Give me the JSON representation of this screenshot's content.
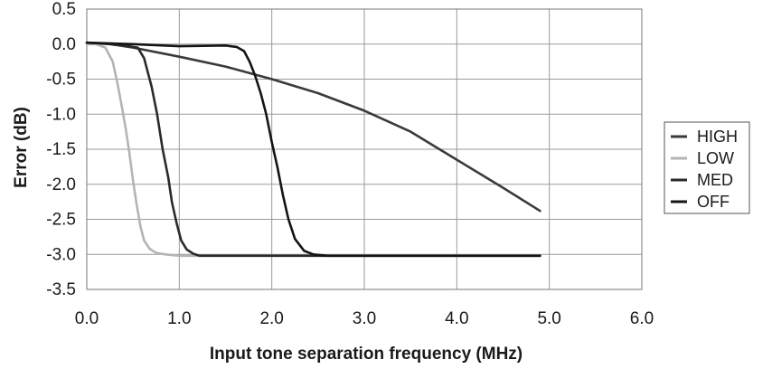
{
  "chart_data": {
    "type": "line",
    "title": "",
    "xlabel": "Input tone separation frequency (MHz)",
    "ylabel": "Error (dB)",
    "xlim": [
      0,
      6
    ],
    "ylim": [
      -3.5,
      0.5
    ],
    "xticks": [
      0,
      1,
      2,
      3,
      4,
      5,
      6
    ],
    "xtick_labels": [
      "0.0",
      "1.0",
      "2.0",
      "3.0",
      "4.0",
      "5.0",
      "6.0"
    ],
    "yticks": [
      0.5,
      0,
      -0.5,
      -1,
      -1.5,
      -2,
      -2.5,
      -3,
      -3.5
    ],
    "ytick_labels": [
      "0.5",
      "0.0",
      "-0.5",
      "-1.0",
      "-1.5",
      "-2.0",
      "-2.5",
      "-3.0",
      "-3.5"
    ],
    "grid": true,
    "legend_position": "right",
    "series": [
      {
        "name": "HIGH",
        "color": "#3a3a3a",
        "x": [
          0.0,
          0.25,
          0.5,
          1.0,
          1.5,
          2.0,
          2.5,
          3.0,
          3.5,
          4.0,
          4.5,
          4.9
        ],
        "y": [
          0.02,
          0.0,
          -0.05,
          -0.18,
          -0.32,
          -0.5,
          -0.7,
          -0.95,
          -1.25,
          -1.65,
          -2.05,
          -2.38
        ]
      },
      {
        "name": "LOW",
        "color": "#b4b4b4",
        "x": [
          0.0,
          0.1,
          0.2,
          0.28,
          0.33,
          0.38,
          0.42,
          0.46,
          0.5,
          0.54,
          0.58,
          0.62,
          0.68,
          0.75,
          0.85,
          1.0,
          1.2
        ],
        "y": [
          0.0,
          0.0,
          -0.05,
          -0.25,
          -0.55,
          -0.9,
          -1.2,
          -1.55,
          -1.95,
          -2.3,
          -2.6,
          -2.8,
          -2.92,
          -2.98,
          -3.0,
          -3.02,
          -3.02
        ]
      },
      {
        "name": "MED",
        "color": "#2a2a2a",
        "x": [
          0.0,
          0.3,
          0.55,
          0.62,
          0.7,
          0.76,
          0.82,
          0.88,
          0.92,
          0.97,
          1.02,
          1.08,
          1.15,
          1.22,
          1.4,
          2.0,
          3.0,
          4.0,
          4.9
        ],
        "y": [
          0.02,
          0.0,
          -0.05,
          -0.2,
          -0.6,
          -1.0,
          -1.5,
          -1.9,
          -2.25,
          -2.55,
          -2.8,
          -2.93,
          -2.99,
          -3.02,
          -3.02,
          -3.02,
          -3.02,
          -3.02,
          -3.02
        ]
      },
      {
        "name": "OFF",
        "color": "#141414",
        "x": [
          0.0,
          0.5,
          1.0,
          1.5,
          1.62,
          1.7,
          1.76,
          1.82,
          1.88,
          1.94,
          2.0,
          2.06,
          2.12,
          2.18,
          2.25,
          2.35,
          2.45,
          2.6,
          3.0,
          4.0,
          4.9
        ],
        "y": [
          0.02,
          0.0,
          -0.03,
          -0.02,
          -0.04,
          -0.1,
          -0.25,
          -0.45,
          -0.7,
          -1.0,
          -1.4,
          -1.75,
          -2.15,
          -2.5,
          -2.78,
          -2.95,
          -3.0,
          -3.02,
          -3.02,
          -3.02,
          -3.02
        ]
      }
    ]
  }
}
